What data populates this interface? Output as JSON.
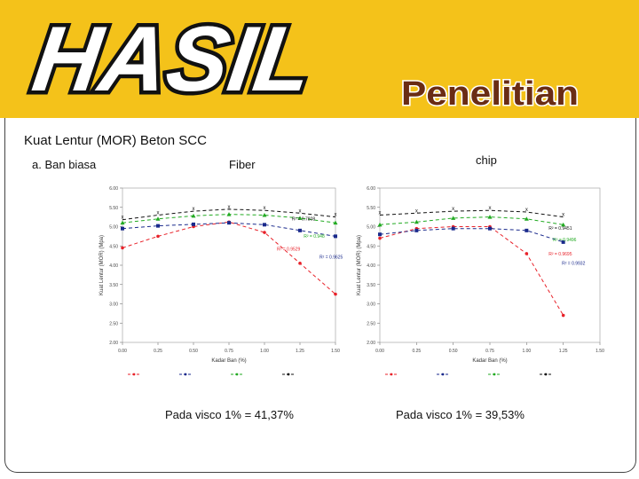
{
  "banner": {
    "title_main": "HASIL",
    "title_sub": "Penelitian",
    "color": "#f4c21a"
  },
  "slide": {
    "title": "Kuat Lentur (MOR) Beton SCC",
    "subtitle": "a. Ban biasa",
    "label_fiber": "Fiber",
    "label_chip": "chip",
    "caption_left": "Pada visco 1% = 41,37%",
    "caption_right": "Pada visco 1% = 39,53%"
  },
  "chart_data": [
    {
      "type": "scatter",
      "x": [
        0.0,
        0.25,
        0.5,
        0.75,
        1.0,
        1.25,
        1.5
      ],
      "xticks": [
        "0.00",
        "0.25",
        "0.50",
        "0.75",
        "1.00",
        "1.25",
        "1.50"
      ],
      "yticks": [
        "2.00",
        "2.50",
        "3.00",
        "3.50",
        "4.00",
        "4.50",
        "5.00",
        "5.50",
        "6.00"
      ],
      "xlim": [
        0,
        1.5
      ],
      "ylim": [
        2,
        6
      ],
      "xlabel": "Kadar Ban (%)",
      "ylabel": "Kuat Lentur (MOR) (Mpa)",
      "series": [
        {
          "color": "#e8222a",
          "values": [
            4.45,
            4.75,
            5.0,
            5.12,
            4.85,
            4.05,
            3.25
          ],
          "fit": "R² = 0.9529"
        },
        {
          "color": "#1a2a8c",
          "values": [
            4.95,
            5.02,
            5.06,
            5.1,
            5.05,
            4.9,
            4.75
          ],
          "fit": "R² = 0.9625"
        },
        {
          "color": "#22aa22",
          "values": [
            5.1,
            5.2,
            5.28,
            5.32,
            5.3,
            5.22,
            5.1
          ],
          "fit": "R² = 0.948"
        },
        {
          "color": "#111111",
          "values": [
            5.18,
            5.3,
            5.4,
            5.45,
            5.42,
            5.35,
            5.25
          ],
          "fit": "R² = 0.7808"
        }
      ]
    },
    {
      "type": "scatter",
      "x": [
        0.0,
        0.25,
        0.5,
        0.75,
        1.0,
        1.25
      ],
      "xticks": [
        "0.00",
        "0.25",
        "0.50",
        "0.75",
        "1.00",
        "1.25",
        "1.50"
      ],
      "yticks": [
        "2.00",
        "2.50",
        "3.00",
        "3.50",
        "4.00",
        "4.50",
        "5.00",
        "5.50",
        "6.00"
      ],
      "xlim": [
        0,
        1.5
      ],
      "ylim": [
        2,
        6
      ],
      "xlabel": "Kadar Ban (%)",
      "ylabel": "Kuat Lentur (MOR) (Mpa)",
      "series": [
        {
          "color": "#e8222a",
          "values": [
            4.7,
            4.95,
            5.0,
            5.0,
            4.3,
            2.7
          ],
          "fit": "R² = 0.9695"
        },
        {
          "color": "#1a2a8c",
          "values": [
            4.8,
            4.9,
            4.95,
            4.95,
            4.9,
            4.6
          ],
          "fit": "R² = 0.9932"
        },
        {
          "color": "#22aa22",
          "values": [
            5.05,
            5.12,
            5.22,
            5.25,
            5.2,
            5.05
          ],
          "fit": "R² = 0.9496"
        },
        {
          "color": "#111111",
          "values": [
            5.3,
            5.35,
            5.4,
            5.42,
            5.38,
            5.25
          ],
          "fit": "R² = 0.9451"
        }
      ]
    }
  ]
}
